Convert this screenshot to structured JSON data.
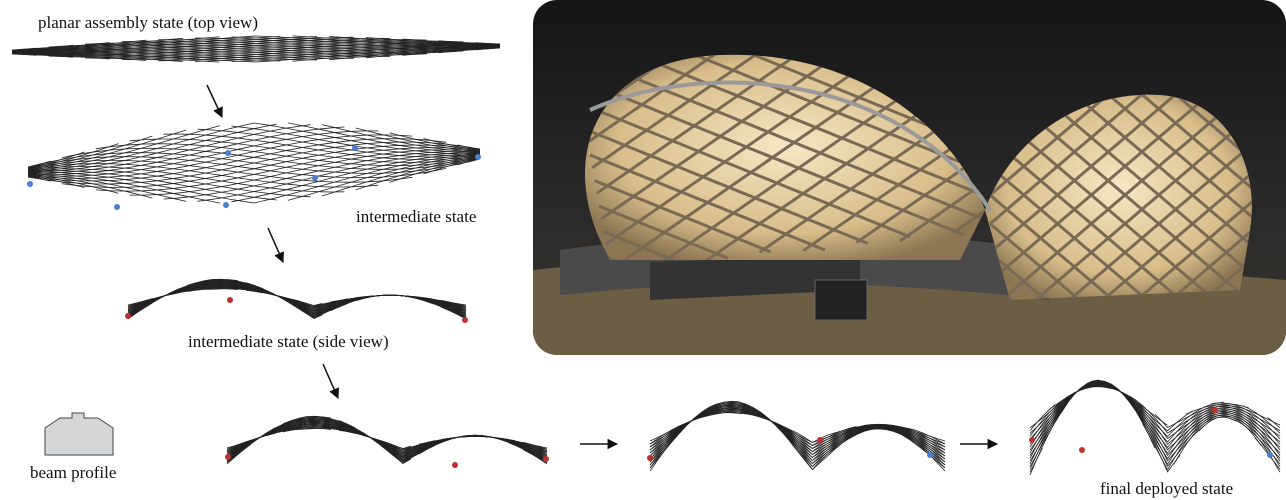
{
  "labels": {
    "planar": "planar assembly state (top view)",
    "intermediate": "intermediate state",
    "side": "intermediate state (side view)",
    "profile": "beam profile",
    "final": "final deployed state"
  }
}
